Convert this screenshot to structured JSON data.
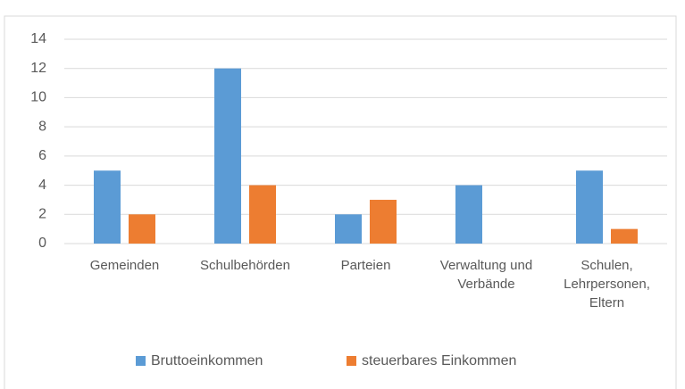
{
  "chart_data": {
    "type": "bar",
    "categories": [
      "Gemeinden",
      "Schulbehörden",
      "Parteien",
      "Verwaltung und Verbände",
      "Schulen, Lehrpersonen, Eltern"
    ],
    "series": [
      {
        "name": "Bruttoeinkommen",
        "color": "#5b9bd5",
        "values": [
          5,
          12,
          2,
          4,
          5
        ]
      },
      {
        "name": "steuerbares Einkommen",
        "color": "#ed7d31",
        "values": [
          2,
          4,
          3,
          0,
          1
        ]
      }
    ],
    "ylim": [
      0,
      14
    ],
    "yticks": [
      0,
      2,
      4,
      6,
      8,
      10,
      12,
      14
    ],
    "grid": true,
    "legend": "bottom"
  }
}
